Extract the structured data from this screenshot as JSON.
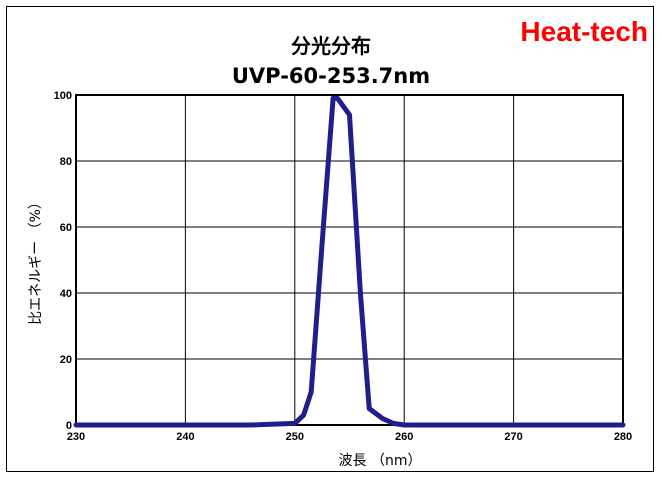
{
  "brand": "Heat-tech",
  "chart_data": {
    "type": "line",
    "title": "分光分布",
    "subtitle": "UVP-60-253.7nm",
    "xlabel": "波長 （nm）",
    "ylabel": "比エネルギー （%）",
    "xlim": [
      230,
      280
    ],
    "ylim": [
      0,
      100
    ],
    "xticks": [
      230,
      240,
      250,
      260,
      270,
      280
    ],
    "yticks": [
      0,
      20,
      40,
      60,
      80,
      100
    ],
    "grid": true,
    "series": [
      {
        "color": "#1f1f8c",
        "x": [
          230,
          246,
          250,
          250.8,
          251.5,
          252.5,
          253.5,
          253.9,
          255,
          256,
          256.8,
          258,
          259,
          260,
          280
        ],
        "y": [
          0,
          0,
          0.5,
          3,
          10,
          55,
          99,
          99,
          94,
          40,
          5,
          2,
          0.5,
          0,
          0
        ]
      }
    ]
  }
}
